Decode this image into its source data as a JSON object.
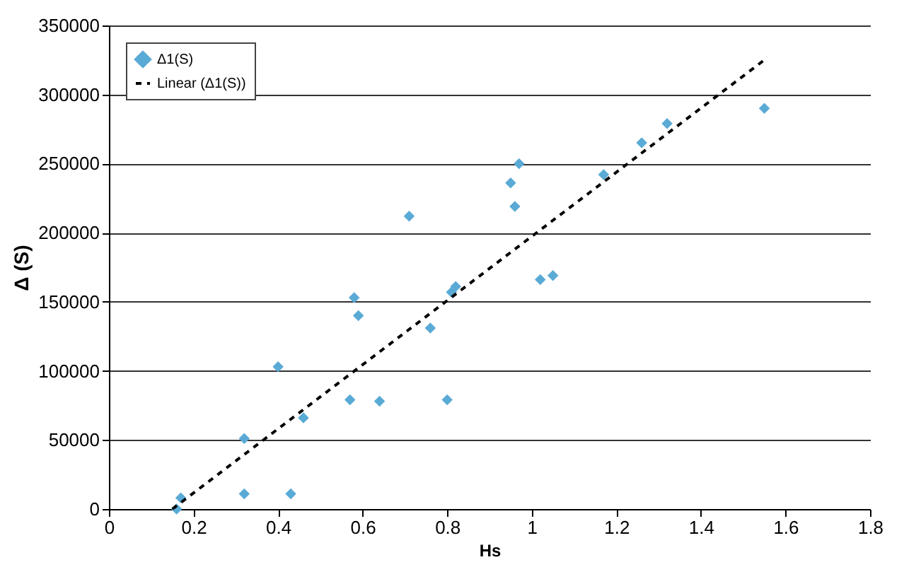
{
  "chart_data": {
    "type": "scatter",
    "xlabel": "Hs",
    "ylabel": "Δ (S)",
    "xlim": [
      0,
      1.8
    ],
    "xticks": [
      0,
      0.2,
      0.4,
      0.6,
      0.8,
      1,
      1.2,
      1.4,
      1.6,
      1.8
    ],
    "ylim": [
      0,
      350000
    ],
    "yticks": [
      0,
      50000,
      100000,
      150000,
      200000,
      250000,
      300000,
      350000
    ],
    "grid": "y",
    "legend": "top left",
    "series": [
      {
        "name": "Δ1(S)",
        "type": "scatter",
        "marker": "diamond",
        "color": "#5aaad6",
        "x": [
          0.16,
          0.17,
          0.32,
          0.32,
          0.4,
          0.43,
          0.46,
          0.57,
          0.58,
          0.59,
          0.64,
          0.71,
          0.76,
          0.8,
          0.81,
          0.82,
          0.95,
          0.96,
          0.97,
          1.02,
          1.05,
          1.17,
          1.26,
          1.32,
          1.55
        ],
        "values": [
          0,
          8000,
          51000,
          11000,
          103000,
          11000,
          66000,
          79000,
          153000,
          140000,
          78000,
          212000,
          131000,
          79000,
          157000,
          161000,
          236000,
          219000,
          250000,
          166000,
          169000,
          242000,
          265000,
          279000,
          290000
        ]
      },
      {
        "name": "Linear (Δ1(S))",
        "type": "line",
        "line_style": "dashed",
        "marker": "none",
        "color": "#000000",
        "x": [
          0.15,
          1.55
        ],
        "values": [
          0,
          325000
        ]
      }
    ]
  }
}
